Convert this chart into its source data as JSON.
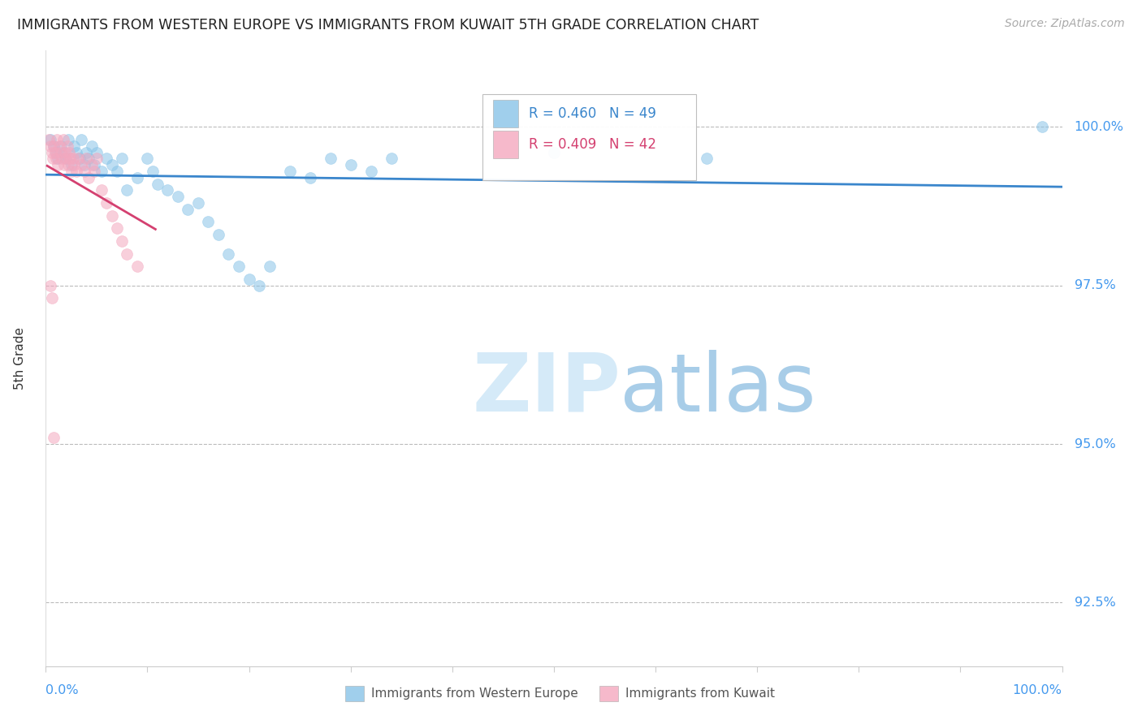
{
  "title": "IMMIGRANTS FROM WESTERN EUROPE VS IMMIGRANTS FROM KUWAIT 5TH GRADE CORRELATION CHART",
  "source": "Source: ZipAtlas.com",
  "ylabel": "5th Grade",
  "x_label_bottom_left": "0.0%",
  "x_label_bottom_right": "100.0%",
  "legend_label1": "Immigrants from Western Europe",
  "legend_label2": "Immigrants from Kuwait",
  "r_blue": 0.46,
  "n_blue": 49,
  "r_pink": 0.409,
  "n_pink": 42,
  "blue_color": "#89c4e8",
  "pink_color": "#f4a8bf",
  "trend_blue_color": "#3a86cc",
  "trend_pink_color": "#d44070",
  "blue_scatter_x": [
    0.005,
    0.008,
    0.01,
    0.012,
    0.015,
    0.018,
    0.02,
    0.022,
    0.025,
    0.028,
    0.03,
    0.033,
    0.035,
    0.038,
    0.04,
    0.042,
    0.045,
    0.048,
    0.05,
    0.055,
    0.06,
    0.065,
    0.07,
    0.075,
    0.08,
    0.09,
    0.1,
    0.105,
    0.11,
    0.12,
    0.13,
    0.14,
    0.15,
    0.16,
    0.17,
    0.18,
    0.19,
    0.2,
    0.21,
    0.22,
    0.24,
    0.26,
    0.28,
    0.3,
    0.32,
    0.34,
    0.5,
    0.65,
    0.98
  ],
  "blue_scatter_y": [
    99.8,
    99.7,
    99.6,
    99.5,
    99.7,
    99.6,
    99.5,
    99.8,
    99.4,
    99.7,
    99.6,
    99.5,
    99.8,
    99.4,
    99.6,
    99.5,
    99.7,
    99.4,
    99.6,
    99.3,
    99.5,
    99.4,
    99.3,
    99.5,
    99.0,
    99.2,
    99.5,
    99.3,
    99.1,
    99.0,
    98.9,
    98.7,
    98.8,
    98.5,
    98.3,
    98.0,
    97.8,
    97.6,
    97.5,
    97.8,
    99.3,
    99.2,
    99.5,
    99.4,
    99.3,
    99.5,
    99.6,
    99.5,
    100.0
  ],
  "pink_scatter_x": [
    0.003,
    0.005,
    0.006,
    0.007,
    0.008,
    0.009,
    0.01,
    0.011,
    0.012,
    0.013,
    0.015,
    0.016,
    0.017,
    0.018,
    0.019,
    0.02,
    0.021,
    0.022,
    0.023,
    0.024,
    0.025,
    0.027,
    0.028,
    0.03,
    0.032,
    0.035,
    0.038,
    0.04,
    0.042,
    0.045,
    0.048,
    0.05,
    0.055,
    0.06,
    0.065,
    0.07,
    0.075,
    0.08,
    0.09,
    0.005,
    0.006,
    0.008
  ],
  "pink_scatter_y": [
    99.8,
    99.7,
    99.6,
    99.5,
    99.7,
    99.6,
    99.5,
    99.8,
    99.4,
    99.7,
    99.6,
    99.5,
    99.8,
    99.4,
    99.6,
    99.5,
    99.7,
    99.4,
    99.6,
    99.5,
    99.3,
    99.5,
    99.4,
    99.3,
    99.5,
    99.4,
    99.3,
    99.5,
    99.2,
    99.4,
    99.3,
    99.5,
    99.0,
    98.8,
    98.6,
    98.4,
    98.2,
    98.0,
    97.8,
    97.5,
    97.3,
    95.1
  ],
  "xlim": [
    0.0,
    1.0
  ],
  "ylim": [
    91.5,
    101.2
  ],
  "y_ticks": [
    92.5,
    95.0,
    97.5,
    100.0
  ],
  "y_tick_labels": [
    "92.5%",
    "95.0%",
    "97.5%",
    "100.0%"
  ],
  "watermark_zip": "ZIP",
  "watermark_atlas": "atlas",
  "background_color": "#ffffff",
  "grid_color": "#cccccc"
}
